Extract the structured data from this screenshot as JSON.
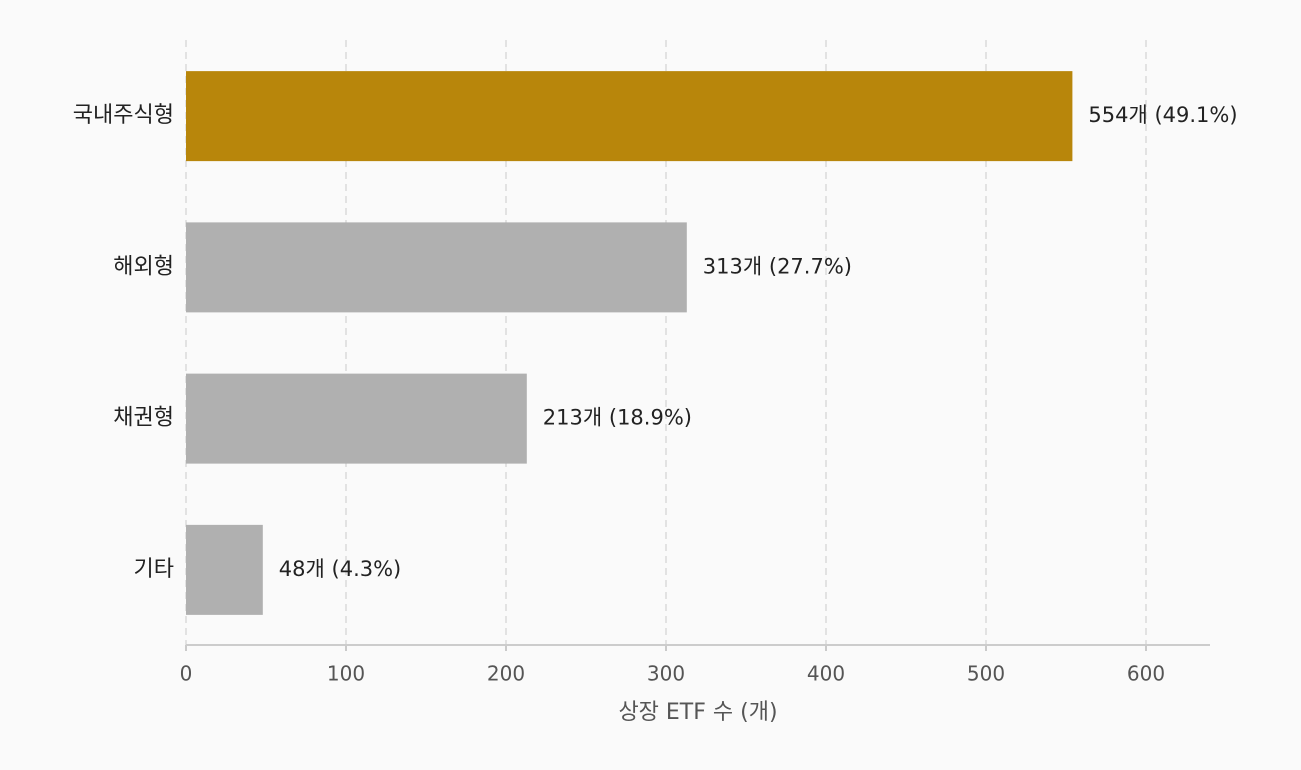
{
  "chart_data": {
    "type": "bar",
    "orientation": "horizontal",
    "categories": [
      "국내주식형",
      "해외형",
      "채권형",
      "기타"
    ],
    "values": [
      554,
      313,
      213,
      48
    ],
    "value_labels": [
      "554개 (49.1%)",
      "313개 (27.7%)",
      "213개 (18.9%)",
      "48개 (4.3%)"
    ],
    "colors": [
      "#b8860b",
      "#b0b0b0",
      "#b0b0b0",
      "#b0b0b0"
    ],
    "x_label": "상장 ETF 수 (개)",
    "xlim": [
      0,
      640
    ],
    "xticks": [
      0,
      100,
      200,
      300,
      400,
      500,
      600
    ],
    "grid": true
  }
}
